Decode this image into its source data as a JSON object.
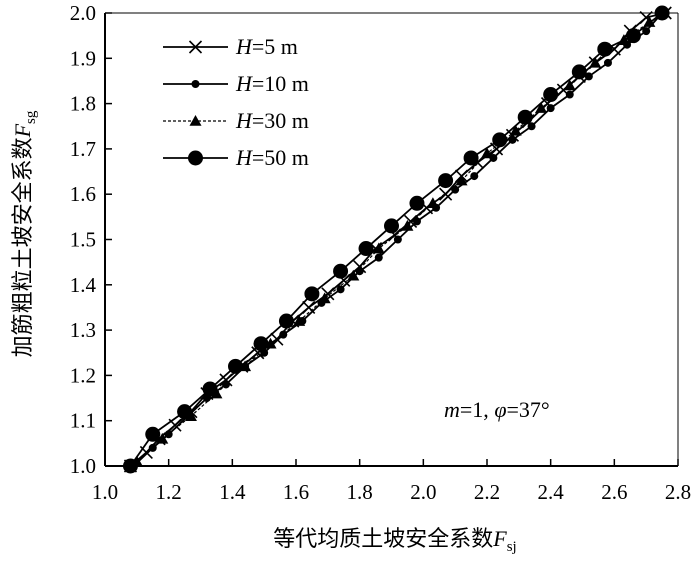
{
  "chart_data": {
    "type": "line",
    "xlabel": {
      "text": "等代均质土坡安全系数",
      "var": "F",
      "sub": "sj"
    },
    "ylabel": {
      "text": "加筋粗粒土坡安全系数",
      "var": "F",
      "sub": "sg"
    },
    "xlim": [
      1.0,
      2.8
    ],
    "ylim": [
      1.0,
      2.0
    ],
    "xticks": [
      1.0,
      1.2,
      1.4,
      1.6,
      1.8,
      2.0,
      2.2,
      2.4,
      2.6,
      2.8
    ],
    "xtick_labels": [
      "1.0",
      "1.2",
      "1.4",
      "1.6",
      "1.8",
      "2.0",
      "2.2",
      "2.4",
      "2.6",
      "2.8"
    ],
    "yticks": [
      1.0,
      1.1,
      1.2,
      1.3,
      1.4,
      1.5,
      1.6,
      1.7,
      1.8,
      1.9,
      2.0
    ],
    "ytick_labels": [
      "1.0",
      "1.1",
      "1.2",
      "1.3",
      "1.4",
      "1.5",
      "1.6",
      "1.7",
      "1.8",
      "1.9",
      "2.0"
    ],
    "grid": false,
    "legend_position": "top-left",
    "annotation": {
      "m_var": "m",
      "m_val": "=1, ",
      "phi_var": "φ",
      "phi_val": "=37°"
    },
    "series": [
      {
        "name": {
          "var": "H",
          "val": "=5 m"
        },
        "marker": "x",
        "line": "solid",
        "x": [
          1.08,
          1.13,
          1.17,
          1.22,
          1.27,
          1.32,
          1.38,
          1.43,
          1.48,
          1.54,
          1.59,
          1.64,
          1.7,
          1.75,
          1.8,
          1.85,
          1.91,
          1.96,
          2.01,
          2.07,
          2.12,
          2.17,
          2.23,
          2.28,
          2.33,
          2.39,
          2.44,
          2.49,
          2.54,
          2.6,
          2.65,
          2.7,
          2.76
        ],
        "y": [
          1.0,
          1.03,
          1.06,
          1.09,
          1.12,
          1.16,
          1.19,
          1.22,
          1.25,
          1.28,
          1.32,
          1.35,
          1.38,
          1.41,
          1.44,
          1.48,
          1.51,
          1.54,
          1.57,
          1.6,
          1.64,
          1.67,
          1.7,
          1.73,
          1.76,
          1.8,
          1.83,
          1.86,
          1.89,
          1.92,
          1.96,
          1.99,
          2.0
        ]
      },
      {
        "name": {
          "var": "H",
          "val": "=10 m"
        },
        "marker": "small-circle",
        "line": "solid",
        "x": [
          1.09,
          1.15,
          1.2,
          1.26,
          1.32,
          1.38,
          1.44,
          1.5,
          1.56,
          1.62,
          1.68,
          1.74,
          1.8,
          1.86,
          1.92,
          1.98,
          2.04,
          2.1,
          2.16,
          2.22,
          2.28,
          2.34,
          2.4,
          2.46,
          2.52,
          2.58,
          2.64,
          2.7,
          2.75
        ],
        "y": [
          1.0,
          1.04,
          1.07,
          1.11,
          1.15,
          1.18,
          1.22,
          1.25,
          1.29,
          1.32,
          1.36,
          1.39,
          1.43,
          1.46,
          1.5,
          1.54,
          1.57,
          1.61,
          1.64,
          1.68,
          1.72,
          1.75,
          1.79,
          1.82,
          1.86,
          1.89,
          1.93,
          1.96,
          2.0
        ]
      },
      {
        "name": {
          "var": "H",
          "val": "=30 m"
        },
        "marker": "triangle",
        "line": "dashed",
        "x": [
          1.1,
          1.18,
          1.27,
          1.35,
          1.44,
          1.52,
          1.61,
          1.69,
          1.78,
          1.86,
          1.95,
          2.03,
          2.12,
          2.2,
          2.29,
          2.37,
          2.46,
          2.54,
          2.63,
          2.71
        ],
        "y": [
          1.01,
          1.06,
          1.11,
          1.16,
          1.22,
          1.27,
          1.32,
          1.37,
          1.42,
          1.48,
          1.53,
          1.58,
          1.63,
          1.69,
          1.74,
          1.79,
          1.84,
          1.89,
          1.94,
          1.98
        ]
      },
      {
        "name": {
          "var": "H",
          "val": "=50 m"
        },
        "marker": "big-circle",
        "line": "solid",
        "x": [
          1.08,
          1.15,
          1.25,
          1.33,
          1.41,
          1.49,
          1.57,
          1.65,
          1.74,
          1.82,
          1.9,
          1.98,
          2.07,
          2.15,
          2.24,
          2.32,
          2.4,
          2.49,
          2.57,
          2.66,
          2.75
        ],
        "y": [
          1.0,
          1.07,
          1.12,
          1.17,
          1.22,
          1.27,
          1.32,
          1.38,
          1.43,
          1.48,
          1.53,
          1.58,
          1.63,
          1.68,
          1.72,
          1.77,
          1.82,
          1.87,
          1.92,
          1.95,
          2.0
        ]
      }
    ]
  }
}
